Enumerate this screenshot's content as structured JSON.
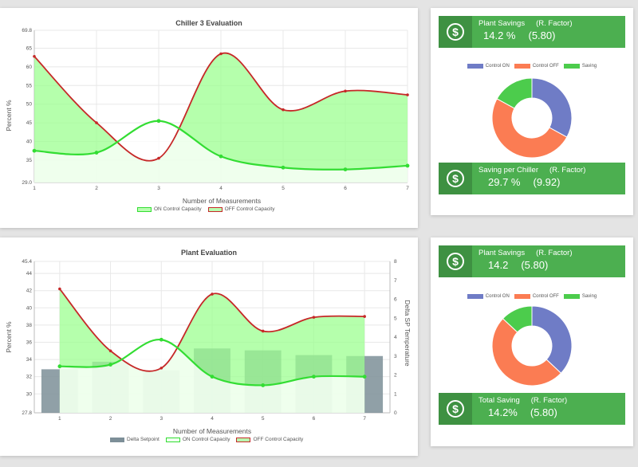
{
  "colors": {
    "on": "#33dd33",
    "off": "#c62828",
    "bar": "#7d8f98",
    "saving": "#4ccc4c",
    "control_on": "#6f7cc6",
    "control_off": "#fb7c53",
    "tile": "#4caf50",
    "tile_dark": "#3e9142"
  },
  "chart1": {
    "title": "Chiller 3 Evaluation",
    "xlabel": "Number of Measurements",
    "ylabel": "Percent %",
    "legend": [
      "ON Control Capacity",
      "OFF Control Capacity"
    ]
  },
  "chart2": {
    "title": "Plant Evaluation",
    "xlabel": "Number of Measurements",
    "ylabel": "Percent %",
    "ylabel_right": "Delta SP Temperature",
    "legend": [
      "Delta Setpoint",
      "ON Control Capacity",
      "OFF Control Capacity"
    ]
  },
  "panel1": {
    "legend": [
      "Control ON",
      "Control OFF",
      "Saving"
    ],
    "tile_top": {
      "icon": "dollar-icon",
      "title": "Plant Savings",
      "factor_label": "(R. Factor)",
      "value": "14.2 %",
      "factor": "(5.80)"
    },
    "tile_bottom": {
      "icon": "dollar-icon",
      "title": "Saving per Chiller",
      "factor_label": "(R. Factor)",
      "value": "29.7 %",
      "factor": "(9.92)"
    }
  },
  "panel2": {
    "legend": [
      "Control ON",
      "Control OFF",
      "Saving"
    ],
    "tile_top": {
      "icon": "dollar-icon",
      "title": "Plant Savings",
      "factor_label": "(R. Factor)",
      "value": "14.2",
      "factor": "(5.80)"
    },
    "tile_bottom": {
      "icon": "dollar-icon",
      "title": "Total Saving",
      "factor_label": "(R. Factor)",
      "value": "14.2%",
      "factor": "(5.80)"
    }
  },
  "chart_data": [
    {
      "type": "area",
      "title": "Chiller 3 Evaluation",
      "xlabel": "Number of Measurements",
      "ylabel": "Percent %",
      "x": [
        1,
        2,
        3,
        4,
        5,
        6,
        7
      ],
      "ylim": [
        29.0,
        69.8
      ],
      "yticks": [
        "29.0",
        "35",
        "40",
        "45",
        "50",
        "55",
        "60",
        "65",
        "69.8"
      ],
      "series": [
        {
          "name": "ON Control Capacity",
          "values": [
            37.5,
            37.0,
            45.5,
            36.0,
            33.0,
            32.5,
            33.5
          ]
        },
        {
          "name": "OFF Control Capacity",
          "values": [
            62.8,
            45.0,
            35.5,
            63.5,
            48.5,
            53.5,
            52.5
          ]
        }
      ],
      "grid": true,
      "legend_position": "bottom"
    },
    {
      "type": "bar",
      "title": "Plant Evaluation",
      "xlabel": "Number of Measurements",
      "ylabel": "Percent %",
      "ylabel_right": "Delta SP Temperature",
      "x": [
        1,
        2,
        3,
        4,
        5,
        6,
        7
      ],
      "ylim": [
        27.8,
        45.4
      ],
      "yticks": [
        "27.8",
        "30",
        "32",
        "34",
        "36",
        "38",
        "40",
        "42",
        "44",
        "45.4"
      ],
      "ylim_right": [
        0,
        8
      ],
      "yticks_right": [
        "0",
        "1",
        "2",
        "3",
        "4",
        "5",
        "6",
        "7",
        "8"
      ],
      "series": [
        {
          "name": "Delta Setpoint",
          "kind": "bar",
          "axis": "right",
          "values": [
            2.3,
            2.7,
            2.25,
            3.4,
            3.3,
            3.05,
            3.0
          ]
        },
        {
          "name": "ON Control Capacity",
          "kind": "line",
          "axis": "left",
          "values": [
            33.2,
            33.4,
            36.3,
            32.0,
            31.0,
            32.0,
            32.0
          ]
        },
        {
          "name": "OFF Control Capacity",
          "kind": "line",
          "axis": "left",
          "values": [
            42.2,
            35.0,
            33.0,
            41.6,
            37.3,
            38.9,
            39.0
          ]
        }
      ],
      "grid": true,
      "legend_position": "bottom"
    },
    {
      "type": "pie",
      "variant": "doughnut",
      "labels": [
        "Control ON",
        "Control OFF",
        "Saving"
      ],
      "values": [
        33.0,
        50.0,
        17.0
      ],
      "legend_position": "top"
    },
    {
      "type": "pie",
      "variant": "doughnut",
      "labels": [
        "Control ON",
        "Control OFF",
        "Saving"
      ],
      "values": [
        37.0,
        50.0,
        13.0
      ],
      "legend_position": "top"
    }
  ]
}
